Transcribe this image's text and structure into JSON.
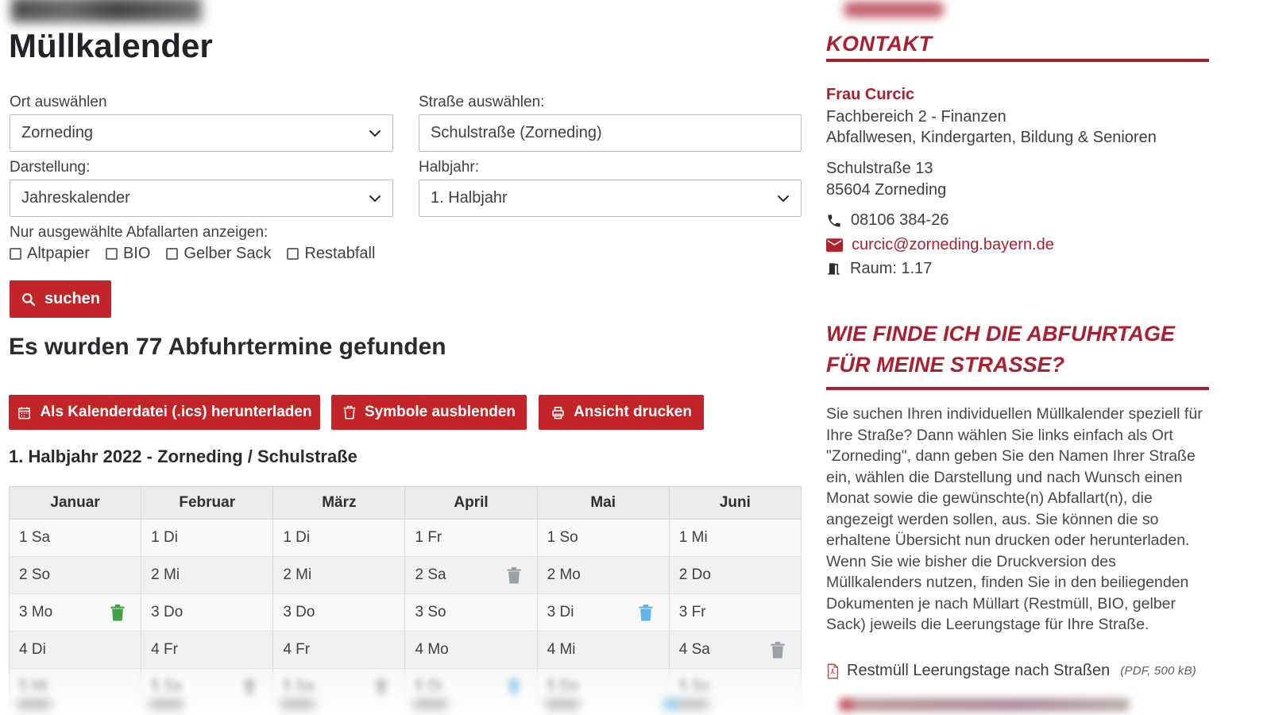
{
  "colors": {
    "accent_red": "#c32429",
    "sidebar_red": "#ab2030",
    "trash_green": "#43a047",
    "trash_blue": "#64b5e6",
    "trash_gray": "#9aa0a6"
  },
  "header": {
    "title": "Müllkalender"
  },
  "form": {
    "ort_label": "Ort auswählen",
    "ort_value": "Zorneding",
    "strasse_label": "Straße auswählen:",
    "strasse_value": "Schulstraße (Zorneding)",
    "darstellung_label": "Darstellung:",
    "darstellung_value": "Jahreskalender",
    "halbjahr_label": "Halbjahr:",
    "halbjahr_value": "1. Halbjahr",
    "filter_label": "Nur ausgewählte Abfallarten anzeigen:",
    "checkboxes": [
      {
        "label": "Altpapier",
        "checked": false
      },
      {
        "label": "BIO",
        "checked": false
      },
      {
        "label": "Gelber Sack",
        "checked": false
      },
      {
        "label": "Restabfall",
        "checked": false
      }
    ],
    "search_button": "suchen"
  },
  "results": {
    "heading": "Es wurden 77 Abfuhrtermine gefunden",
    "download_button": "Als Kalenderdatei (.ics) herunterladen",
    "symbols_button": "Symbole ausblenden",
    "print_button": "Ansicht drucken",
    "subheading": "1. Halbjahr 2022 - Zorneding / Schulstraße"
  },
  "calendar": {
    "months": [
      "Januar",
      "Februar",
      "März",
      "April",
      "Mai",
      "Juni"
    ],
    "rows": [
      [
        {
          "text": "1 Sa"
        },
        {
          "text": "1 Di"
        },
        {
          "text": "1 Di"
        },
        {
          "text": "1 Fr"
        },
        {
          "text": "1 So"
        },
        {
          "text": "1 Mi"
        }
      ],
      [
        {
          "text": "2 So"
        },
        {
          "text": "2 Mi"
        },
        {
          "text": "2 Mi"
        },
        {
          "text": "2 Sa",
          "icon": "gray"
        },
        {
          "text": "2 Mo"
        },
        {
          "text": "2 Do"
        }
      ],
      [
        {
          "text": "3 Mo",
          "icon": "green"
        },
        {
          "text": "3 Do"
        },
        {
          "text": "3 Do"
        },
        {
          "text": "3 So"
        },
        {
          "text": "3 Di",
          "icon": "blue"
        },
        {
          "text": "3 Fr"
        }
      ],
      [
        {
          "text": "4 Di"
        },
        {
          "text": "4 Fr"
        },
        {
          "text": "4 Fr"
        },
        {
          "text": "4 Mo"
        },
        {
          "text": "4 Mi"
        },
        {
          "text": "4 Sa",
          "icon": "gray"
        }
      ],
      [
        {
          "text": "5 Mi"
        },
        {
          "text": "5 Sa",
          "icon": "gray"
        },
        {
          "text": "5 Sa",
          "icon": "gray"
        },
        {
          "text": "5 Di",
          "icon": "blue"
        },
        {
          "text": "5 Do"
        },
        {
          "text": "5 So"
        }
      ]
    ],
    "icon_colors": {
      "green": "#43a047",
      "blue": "#64b5e6",
      "gray": "#9aa0a6"
    }
  },
  "sidebar": {
    "kontakt_heading": "KONTAKT",
    "contact": {
      "name": "Frau Curcic",
      "dept1": "Fachbereich 2 - Finanzen",
      "dept2": "Abfallwesen, Kindergarten, Bildung & Senioren",
      "street": "Schulstraße 13",
      "city": "85604 Zorneding",
      "phone": "08106 384-26",
      "email": "curcic@zorneding.bayern.de",
      "room": "Raum: 1.17"
    },
    "faq_heading": "WIE FINDE ICH DIE ABFUHRTAGE FÜR MEINE STRASSE?",
    "faq_text": "Sie suchen Ihren individuellen Müllkalender speziell für Ihre Straße? Dann wählen Sie links einfach als Ort \"Zorneding\", dann geben Sie den Namen Ihrer Straße ein, wählen die Darstellung und nach Wunsch einen Monat sowie die gewünschte(n) Abfallart(n), die angezeigt werden sollen, aus. Sie können die so erhaltene Übersicht nun drucken oder herunterladen. Wenn Sie wie bisher die Druckversion des Müllkalenders nutzen, finden Sie in den beiliegenden Dokumenten je nach Müllart (Restmüll, BIO, gelber Sack) jeweils die Leerungstage für Ihre Straße.",
    "pdf_link": "Restmüll Leerungstage nach Straßen",
    "pdf_meta": "(PDF, 500 kB)"
  }
}
